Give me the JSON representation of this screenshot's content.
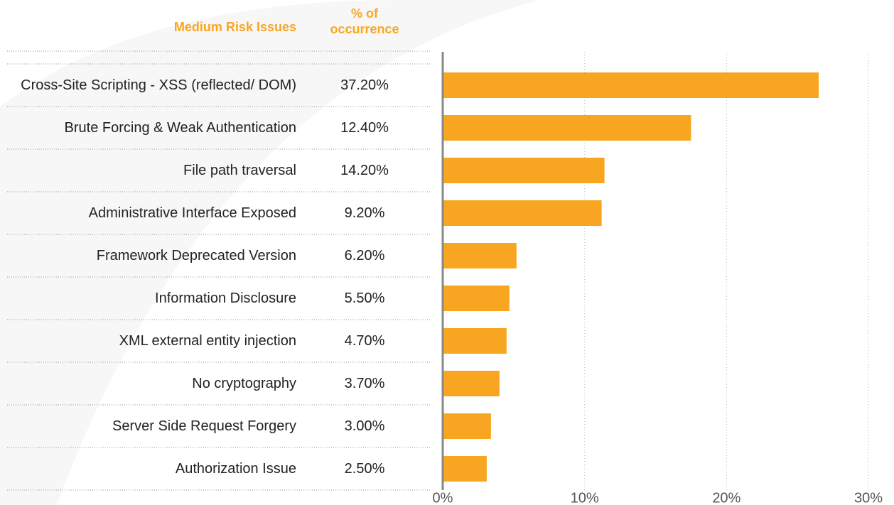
{
  "chart_data": {
    "type": "bar",
    "orientation": "horizontal",
    "column_headers": [
      "Medium Risk Issues",
      "% of occurrence"
    ],
    "categories": [
      "Cross-Site Scripting - XSS (reflected/ DOM)",
      "Brute Forcing & Weak Authentication",
      "File path traversal",
      "Administrative Interface Exposed",
      "Framework Deprecated Version",
      "Information Disclosure",
      "XML external entity injection",
      "No cryptography",
      "Server Side Request Forgery",
      "Authorization Issue"
    ],
    "occurrence": [
      "37.20%",
      "12.40%",
      "14.20%",
      "9.20%",
      "6.20%",
      "5.50%",
      "4.70%",
      "3.70%",
      "3.00%",
      "2.50%"
    ],
    "values": [
      26.5,
      17.5,
      11.4,
      11.2,
      5.2,
      4.7,
      4.5,
      4.0,
      3.4,
      3.1
    ],
    "color": "#f8a622",
    "xlim": [
      0,
      30
    ],
    "xticks": [
      {
        "value": 0,
        "label": "0%"
      },
      {
        "value": 10,
        "label": "10%"
      },
      {
        "value": 20,
        "label": "20%"
      },
      {
        "value": 30,
        "label": "30%"
      }
    ],
    "grid": true
  }
}
